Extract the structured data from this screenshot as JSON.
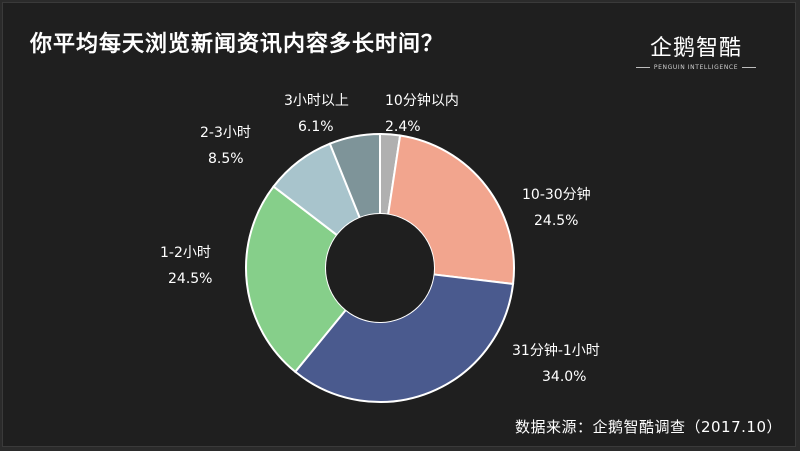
{
  "title": "你平均每天浏览新闻资讯内容多长时间？",
  "logo": {
    "name": "企鹅智酷",
    "sub": "PENGUIN INTELLIGENCE"
  },
  "source": "数据来源：企鹅智酷调查（2017.10）",
  "colors": {
    "background": "#1f1f1f",
    "text": "#ffffff"
  },
  "chart_data": {
    "type": "pie",
    "donut": true,
    "slices": [
      {
        "label": "10分钟以内",
        "value": 2.4,
        "value_label": "2.4%",
        "color": "#b0b0b0"
      },
      {
        "label": "10-30分钟",
        "value": 24.5,
        "value_label": "24.5%",
        "color": "#f2a58e"
      },
      {
        "label": "31分钟-1小时",
        "value": 34.0,
        "value_label": "34.0%",
        "color": "#4a5a8e"
      },
      {
        "label": "1-2小时",
        "value": 24.5,
        "value_label": "24.5%",
        "color": "#86cf8a"
      },
      {
        "label": "2-3小时",
        "value": 8.5,
        "value_label": "8.5%",
        "color": "#a8c4cc"
      },
      {
        "label": "3小时以上",
        "value": 6.1,
        "value_label": "6.1%",
        "color": "#7e9499"
      }
    ]
  }
}
